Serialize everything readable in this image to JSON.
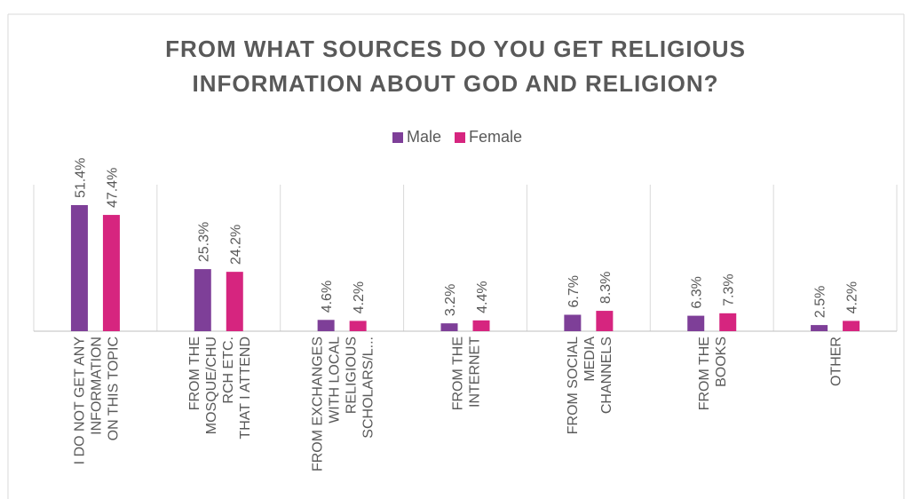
{
  "chart_data": {
    "type": "bar",
    "title_lines": [
      "FROM WHAT SOURCES DO YOU GET RELIGIOUS",
      "INFORMATION ABOUT GOD AND RELIGION?"
    ],
    "title": "FROM WHAT SOURCES DO YOU GET RELIGIOUS INFORMATION ABOUT GOD AND RELIGION?",
    "categories": [
      [
        "I DO NOT GET ANY",
        "INFORMATION",
        "ON THIS TOPIC"
      ],
      [
        "FROM THE",
        "MOSQUE/CHU",
        "RCH ETC.",
        "THAT I ATTEND"
      ],
      [
        "FROM EXCHANGES",
        "WITH LOCAL",
        "RELIGIOUS",
        "SCHOLARS/L..."
      ],
      [
        "FROM THE",
        "INTERNET"
      ],
      [
        "FROM SOCIAL",
        "MEDIA",
        "CHANNELS"
      ],
      [
        "FROM THE",
        "BOOKS"
      ],
      [
        "OTHER"
      ]
    ],
    "series": [
      {
        "name": "Male",
        "color": "#7E3F98",
        "values": [
          51.4,
          25.3,
          4.6,
          3.2,
          6.7,
          6.3,
          2.5
        ],
        "labels": [
          "51.4%",
          "25.3%",
          "4.6%",
          "3.2%",
          "6.7%",
          "6.3%",
          "2.5%"
        ]
      },
      {
        "name": "Female",
        "color": "#D6257F",
        "values": [
          47.4,
          24.2,
          4.2,
          4.4,
          8.3,
          7.3,
          4.2
        ],
        "labels": [
          "47.4%",
          "24.2%",
          "4.2%",
          "4.4%",
          "8.3%",
          "7.3%",
          "4.2%"
        ]
      }
    ],
    "value_unit": "%",
    "ylim": [
      0,
      60
    ],
    "legend_position": "top",
    "gridlines": "vertical category separators"
  }
}
